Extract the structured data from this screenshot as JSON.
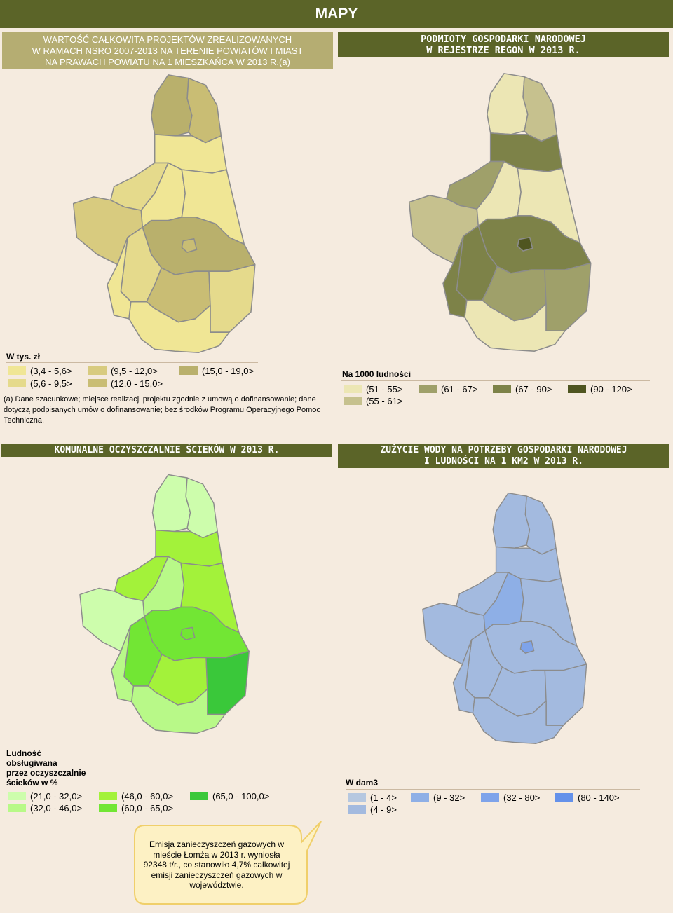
{
  "header": {
    "title": "MAPY"
  },
  "sections": {
    "a": [
      "WARTOŚĆ CAŁKOWITA PROJEKTÓW ZREALIZOWANYCH",
      "W RAMACH NSRO 2007-2013 NA TERENIE POWIATÓW I MIAST",
      "NA PRAWACH POWIATU NA 1 MIESZKAŃCA W 2013 R.(a)"
    ],
    "b": [
      "PODMIOTY GOSPODARKI NARODOWEJ",
      "W REJESTRZE REGON W 2013 R."
    ],
    "c": [
      "KOMUNALNE OCZYSZCZALNIE ŚCIEKÓW W 2013 R."
    ],
    "d": [
      "ZUŻYCIE WODY NA POTRZEBY GOSPODARKI NARODOWEJ",
      "I LUDNOŚCI NA 1 KM2 W 2013 R."
    ]
  },
  "legend_a": {
    "title": "W tys. zł",
    "items": [
      {
        "label": "(3,4 - 5,6>",
        "color": "#f0e695"
      },
      {
        "label": "(5,6 - 9,5>",
        "color": "#e5da8c"
      },
      {
        "label": "(9,5 - 12,0>",
        "color": "#d8cb7f"
      },
      {
        "label": "(12,0 - 15,0>",
        "color": "#c9bd74"
      },
      {
        "label": "(15,0 - 19,0>",
        "color": "#b9b06c"
      }
    ]
  },
  "note_a": "(a) Dane szacunkowe; miejsce realizacji projektu zgodnie z umową o dofinansowanie; dane dotyczą podpisanych umów o dofinansowanie; bez środków Programu Operacyjnego Pomoc Techniczna.",
  "legend_b": {
    "title": "Na 1000 ludności",
    "items": [
      {
        "label": "(51 - 55>",
        "color": "#ece6b4"
      },
      {
        "label": "(55 - 61>",
        "color": "#c6c18e"
      },
      {
        "label": "(61 - 67>",
        "color": "#9fa06a"
      },
      {
        "label": "(67 - 90>",
        "color": "#7d8248"
      },
      {
        "label": "(90 - 120>",
        "color": "#4f5520"
      }
    ]
  },
  "legend_c": {
    "title_lines": [
      "Ludność",
      "obsługiwana",
      "przez oczyszczalnie",
      "ścieków w %"
    ],
    "items": [
      {
        "label": "(21,0 - 32,0>",
        "color": "#cdfdac"
      },
      {
        "label": "(32,0 - 46,0>",
        "color": "#b8f988"
      },
      {
        "label": "(46,0 - 60,0>",
        "color": "#a3f23a"
      },
      {
        "label": "(60,0 - 65,0>",
        "color": "#72e634"
      },
      {
        "label": "(65,0 - 100,0>",
        "color": "#3ac83a"
      }
    ]
  },
  "legend_d": {
    "title": "W dam3",
    "items": [
      {
        "label": "(1 - 4>",
        "color": "#b6c8e0"
      },
      {
        "label": "(4 - 9>",
        "color": "#a3badf"
      },
      {
        "label": "(9 - 32>",
        "color": "#8eafe6"
      },
      {
        "label": "(32 - 80>",
        "color": "#7ea3ea"
      },
      {
        "label": "(80 - 140>",
        "color": "#6491ea"
      }
    ]
  },
  "callout": [
    "Emisja zanieczyszczeń gazowych w",
    "mieście Łomża w 2013 r. wyniosła",
    "92348 t/r., co stanowiło 4,7% całkowitej",
    "emisji zanieczyszczeń gazowych w",
    "województwie."
  ],
  "map_colors": {
    "a": {
      "n1": "#b9b06c",
      "n2": "#c9bd74",
      "c1": "#f0e695",
      "w1": "#e5da8c",
      "w2": "#d8cb7f",
      "e1": "#f0e695",
      "m1": "#f0e695",
      "mc": "#b9b06c",
      "city": "#c9bd74",
      "cw": "#e5da8c",
      "sw": "#f0e695",
      "s1": "#c9bd74",
      "se": "#e5da8c",
      "bot": "#f0e695"
    },
    "b": {
      "n1": "#ece6b4",
      "n2": "#c6c18e",
      "c1": "#7d8248",
      "w1": "#9fa06a",
      "w2": "#c6c18e",
      "e1": "#ece6b4",
      "m1": "#ece6b4",
      "mc": "#7d8248",
      "city": "#4f5520",
      "cw": "#7d8248",
      "sw": "#7d8248",
      "s1": "#9fa06a",
      "se": "#9fa06a",
      "bot": "#ece6b4"
    },
    "c": {
      "n1": "#cdfdac",
      "n2": "#cdfdac",
      "c1": "#a3f23a",
      "w1": "#a3f23a",
      "w2": "#cdfdac",
      "e1": "#a3f23a",
      "m1": "#b8f988",
      "mc": "#72e634",
      "city": "#72e634",
      "cw": "#72e634",
      "sw": "#b8f988",
      "s1": "#a3f23a",
      "se": "#3ac83a",
      "bot": "#b8f988"
    },
    "d": {
      "n1": "#a3badf",
      "n2": "#a3badf",
      "c1": "#a3badf",
      "w1": "#a3badf",
      "w2": "#a3badf",
      "e1": "#a3badf",
      "m1": "#8eafe6",
      "mc": "#a3badf",
      "city": "#7ea3ea",
      "cw": "#a3badf",
      "sw": "#a3badf",
      "s1": "#a3badf",
      "se": "#a3badf",
      "bot": "#a3badf"
    }
  }
}
